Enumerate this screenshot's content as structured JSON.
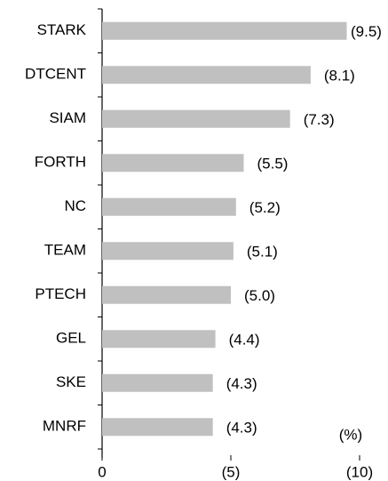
{
  "chart_data": {
    "type": "barh",
    "categories": [
      "STARK",
      "DTCENT",
      "SIAM",
      "FORTH",
      "NC",
      "TEAM",
      "PTECH",
      "GEL",
      "SKE",
      "MNRF"
    ],
    "values": [
      -9.5,
      -8.1,
      -7.3,
      -5.5,
      -5.2,
      -5.1,
      -5.0,
      -4.4,
      -4.3,
      -4.3
    ],
    "value_labels": [
      "(9.5)",
      "(8.1)",
      "(7.3)",
      "(5.5)",
      "(5.2)",
      "(5.1)",
      "(5.0)",
      "(4.4)",
      "(4.3)",
      "(4.3)"
    ],
    "color": "#c0c0c0",
    "xlim": [
      0,
      -10
    ],
    "xticks": [
      0,
      {
        "value": -5,
        "label": "(5)"
      },
      {
        "value": -10,
        "label": "(10)"
      }
    ],
    "x_label": "(%)"
  }
}
